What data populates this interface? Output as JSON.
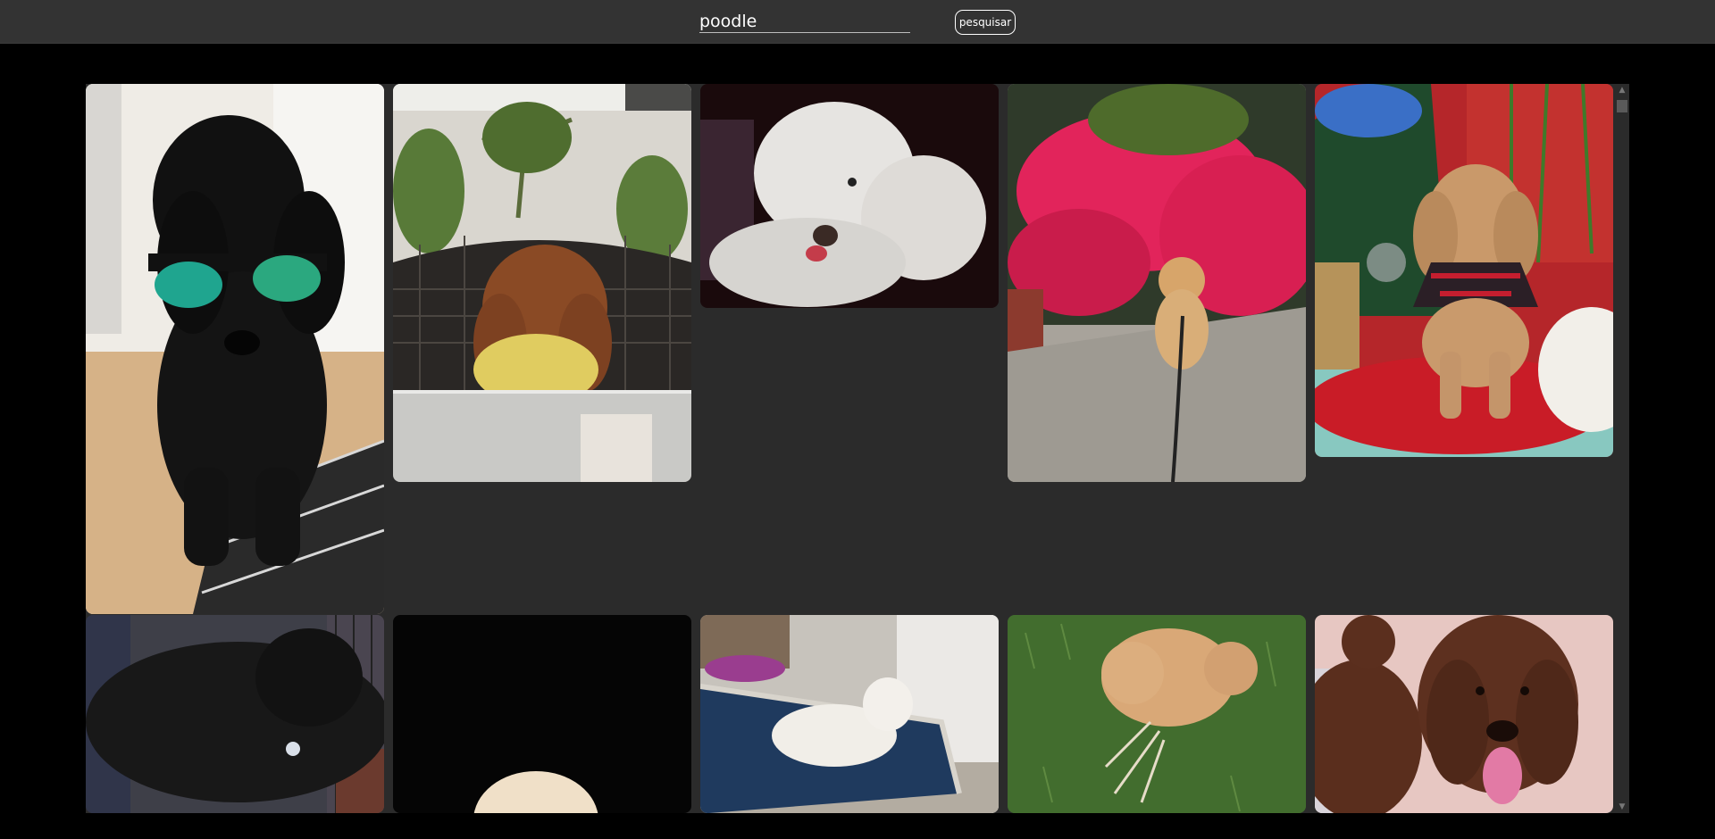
{
  "search": {
    "value": "poodle",
    "button_label": "pesquisar"
  },
  "colors": {
    "topbar": "#333333",
    "gallery_bg": "#2b2b2b",
    "page_bg": "#000000"
  },
  "gallery": {
    "photos": [
      {
        "id": "photo-black-poodle-sunglasses",
        "icon": "black-poodle-sunglasses-image"
      },
      {
        "id": "photo-brown-poodle-chair",
        "icon": "brown-poodle-chair-image"
      },
      {
        "id": "photo-white-poodle-closeup",
        "icon": "white-poodle-closeup-image"
      },
      {
        "id": "photo-apricot-poodle-flowers",
        "icon": "apricot-poodle-flowers-image"
      },
      {
        "id": "photo-poodle-christmas",
        "icon": "poodle-christmas-image"
      },
      {
        "id": "photo-black-poodle-standing",
        "icon": "black-poodle-standing-image"
      },
      {
        "id": "photo-white-poodle-dark",
        "icon": "white-poodle-dark-image"
      },
      {
        "id": "photo-white-poodle-bed",
        "icon": "white-poodle-bed-image"
      },
      {
        "id": "photo-apricot-puppy-grass",
        "icon": "apricot-puppy-grass-image"
      },
      {
        "id": "photo-chocolate-poodle-tongue",
        "icon": "chocolate-poodle-tongue-image"
      }
    ]
  }
}
